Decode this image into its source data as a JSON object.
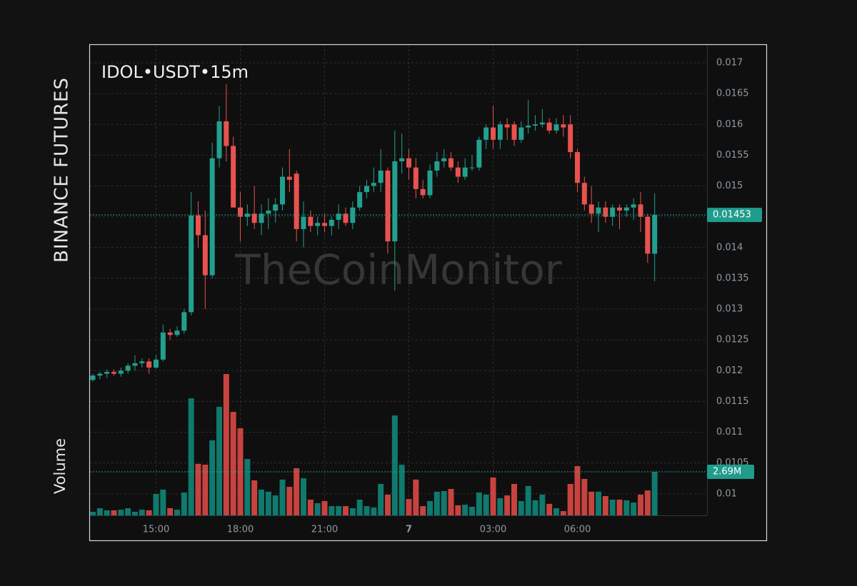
{
  "chart_data": {
    "type": "candlestick",
    "exchange": "BINANCE FUTURES",
    "title": "IDOL•USDT•15m",
    "watermark": "TheCoinMonitor",
    "x": [
      "12:45",
      "13:00",
      "13:15",
      "13:30",
      "13:45",
      "14:00",
      "14:15",
      "14:30",
      "14:45",
      "15:00",
      "15:15",
      "15:30",
      "15:45",
      "16:00",
      "16:15",
      "16:30",
      "16:45",
      "17:00",
      "17:15",
      "17:30",
      "17:45",
      "18:00",
      "18:15",
      "18:30",
      "18:45",
      "19:00",
      "19:15",
      "19:30",
      "19:45",
      "20:00",
      "20:15",
      "20:30",
      "20:45",
      "21:00",
      "21:15",
      "21:30",
      "21:45",
      "22:00",
      "22:15",
      "22:30",
      "22:45",
      "23:00",
      "23:15",
      "23:30",
      "23:45",
      "00:00",
      "00:15",
      "00:30",
      "00:45",
      "01:00",
      "01:15",
      "01:30",
      "01:45",
      "02:00",
      "02:15",
      "02:30",
      "02:45",
      "03:00",
      "03:15",
      "03:30",
      "03:45",
      "04:00",
      "04:15",
      "04:30",
      "04:45",
      "05:00",
      "05:15",
      "05:30",
      "05:45",
      "06:00",
      "06:15",
      "06:30",
      "06:45",
      "07:00",
      "07:15",
      "07:30",
      "07:45",
      "08:00",
      "08:15",
      "08:30",
      "08:45"
    ],
    "open": [
      0.01185,
      0.01192,
      0.01195,
      0.01198,
      0.01195,
      0.012,
      0.01208,
      0.01212,
      0.01215,
      0.01205,
      0.01218,
      0.01262,
      0.01258,
      0.01265,
      0.01295,
      0.01452,
      0.0142,
      0.01355,
      0.01545,
      0.01605,
      0.01565,
      0.01465,
      0.0145,
      0.01455,
      0.0144,
      0.01455,
      0.0146,
      0.0147,
      0.01515,
      0.0152,
      0.0143,
      0.0145,
      0.01435,
      0.0144,
      0.01435,
      0.01445,
      0.01455,
      0.0144,
      0.01465,
      0.0149,
      0.015,
      0.01505,
      0.01525,
      0.0141,
      0.0154,
      0.01545,
      0.0153,
      0.01495,
      0.01485,
      0.01525,
      0.0154,
      0.01545,
      0.0153,
      0.01515,
      0.0153,
      0.0153,
      0.01575,
      0.01595,
      0.01575,
      0.016,
      0.016,
      0.01575,
      0.01595,
      0.01598,
      0.016,
      0.01603,
      0.0159,
      0.016,
      0.016,
      0.01555,
      0.01505,
      0.0147,
      0.01455,
      0.01465,
      0.0145,
      0.01465,
      0.0146,
      0.01465,
      0.0147,
      0.0145,
      0.0139
    ],
    "high": [
      0.01195,
      0.01198,
      0.01202,
      0.01202,
      0.01205,
      0.01212,
      0.01225,
      0.0122,
      0.0122,
      0.01225,
      0.01275,
      0.01268,
      0.01272,
      0.013,
      0.0149,
      0.01475,
      0.0146,
      0.0157,
      0.0163,
      0.01665,
      0.0158,
      0.0149,
      0.0147,
      0.015,
      0.0147,
      0.0148,
      0.0148,
      0.0153,
      0.0156,
      0.01525,
      0.01475,
      0.0146,
      0.0145,
      0.01455,
      0.0145,
      0.0147,
      0.01465,
      0.01475,
      0.015,
      0.0151,
      0.0153,
      0.0156,
      0.0153,
      0.0159,
      0.01585,
      0.0156,
      0.01545,
      0.0151,
      0.01535,
      0.01555,
      0.0156,
      0.01555,
      0.0154,
      0.01545,
      0.0155,
      0.0158,
      0.016,
      0.0163,
      0.01605,
      0.0161,
      0.01605,
      0.01605,
      0.0164,
      0.01615,
      0.01625,
      0.0161,
      0.0161,
      0.01615,
      0.01615,
      0.0156,
      0.01515,
      0.015,
      0.01475,
      0.01475,
      0.0147,
      0.0147,
      0.0147,
      0.0148,
      0.0149,
      0.01455,
      0.01488
    ],
    "low": [
      0.01182,
      0.01186,
      0.01188,
      0.01192,
      0.0119,
      0.01195,
      0.012,
      0.01205,
      0.01195,
      0.01203,
      0.01215,
      0.0125,
      0.01255,
      0.0126,
      0.0129,
      0.014,
      0.013,
      0.0135,
      0.0153,
      0.0154,
      0.01465,
      0.0141,
      0.01435,
      0.0143,
      0.0142,
      0.0143,
      0.0144,
      0.0146,
      0.0149,
      0.0141,
      0.014,
      0.01425,
      0.0142,
      0.01425,
      0.0142,
      0.0143,
      0.01435,
      0.0143,
      0.0146,
      0.0148,
      0.0149,
      0.0149,
      0.0139,
      0.0133,
      0.0152,
      0.0151,
      0.0148,
      0.0148,
      0.0148,
      0.01515,
      0.0153,
      0.01525,
      0.01505,
      0.0151,
      0.01525,
      0.01525,
      0.0156,
      0.0156,
      0.0156,
      0.01575,
      0.01565,
      0.0157,
      0.01585,
      0.0159,
      0.01595,
      0.01585,
      0.01585,
      0.0158,
      0.01545,
      0.0149,
      0.0146,
      0.0144,
      0.01425,
      0.0144,
      0.01435,
      0.0143,
      0.0145,
      0.01445,
      0.01425,
      0.01375,
      0.01345
    ],
    "close": [
      0.01192,
      0.01195,
      0.01198,
      0.01195,
      0.012,
      0.01208,
      0.01212,
      0.01215,
      0.01205,
      0.01218,
      0.01262,
      0.01258,
      0.01265,
      0.01295,
      0.01452,
      0.0142,
      0.01355,
      0.01545,
      0.01605,
      0.01565,
      0.01465,
      0.0145,
      0.01455,
      0.0144,
      0.01455,
      0.0146,
      0.0147,
      0.01515,
      0.0151,
      0.0143,
      0.0145,
      0.01435,
      0.0144,
      0.01435,
      0.01445,
      0.01455,
      0.0144,
      0.01465,
      0.0149,
      0.015,
      0.01505,
      0.01525,
      0.0141,
      0.0154,
      0.01545,
      0.0153,
      0.01495,
      0.01485,
      0.01525,
      0.0154,
      0.01545,
      0.0153,
      0.01515,
      0.0153,
      0.0153,
      0.01575,
      0.01595,
      0.01575,
      0.016,
      0.01595,
      0.01575,
      0.01595,
      0.01598,
      0.016,
      0.01603,
      0.0159,
      0.016,
      0.01595,
      0.01555,
      0.01505,
      0.0147,
      0.01455,
      0.01465,
      0.0145,
      0.01465,
      0.0146,
      0.01465,
      0.0147,
      0.0145,
      0.0139,
      0.01453
    ],
    "up_color": "#22a08f",
    "down_color": "#e9524f",
    "volume": {
      "name": "Volume",
      "up_color": "#0f7a6d",
      "down_color": "#c8433f",
      "values": [
        220000,
        440000,
        310000,
        310000,
        350000,
        440000,
        220000,
        350000,
        310000,
        1320000,
        1590000,
        440000,
        350000,
        1410000,
        7230000,
        3180000,
        3130000,
        4630000,
        6700000,
        8730000,
        6390000,
        5380000,
        3480000,
        2160000,
        1590000,
        1460000,
        1230000,
        2210000,
        1760000,
        2910000,
        2290000,
        970000,
        750000,
        880000,
        570000,
        570000,
        570000,
        440000,
        970000,
        570000,
        490000,
        1940000,
        1280000,
        6170000,
        3130000,
        1010000,
        2210000,
        570000,
        880000,
        1460000,
        1500000,
        1630000,
        620000,
        660000,
        530000,
        1410000,
        1280000,
        2340000,
        1060000,
        1230000,
        1940000,
        880000,
        1810000,
        930000,
        1280000,
        710000,
        440000,
        260000,
        1940000,
        3040000,
        2250000,
        1460000,
        1460000,
        1190000,
        970000,
        970000,
        930000,
        790000,
        1280000,
        1540000,
        2690000
      ],
      "value_labels": [
        null,
        null,
        null,
        null,
        null,
        null,
        null,
        null,
        null,
        null,
        null,
        null,
        null,
        null,
        null,
        null,
        null,
        null,
        null,
        null,
        null,
        null,
        null,
        null,
        null,
        null,
        null,
        null,
        null,
        null,
        null,
        null,
        null,
        null,
        null,
        null,
        null,
        null,
        null,
        null,
        null,
        null,
        null,
        null,
        null,
        null,
        null,
        null,
        null,
        null,
        null,
        null,
        null,
        null,
        null,
        null,
        null,
        null,
        null,
        null,
        null,
        null,
        null,
        null,
        null,
        null,
        null,
        null,
        null,
        null,
        null,
        null,
        null,
        null,
        null,
        null,
        null,
        null,
        null,
        null,
        "2.69M"
      ]
    },
    "ylim": [
      0.00965,
      0.01729
    ],
    "yticks": [
      0.01,
      0.0105,
      0.011,
      0.0115,
      0.012,
      0.0125,
      0.013,
      0.0135,
      0.014,
      0.0145,
      0.015,
      0.0155,
      0.016,
      0.0165,
      0.017
    ],
    "xticks": [
      "15:00",
      "18:00",
      "21:00",
      {
        "value": "00:00",
        "label": "7"
      },
      "03:00",
      "06:00"
    ],
    "grid": true
  }
}
